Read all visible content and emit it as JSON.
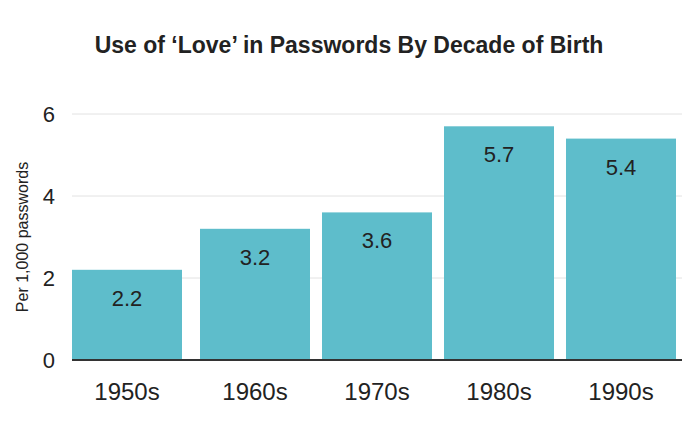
{
  "chart_data": {
    "type": "bar",
    "title": "Use of ‘Love’ in Passwords By Decade of Birth",
    "y_label": "Per 1,000 passwords",
    "categories": [
      "1950s",
      "1960s",
      "1970s",
      "1980s",
      "1990s"
    ],
    "values": [
      2.2,
      3.2,
      3.6,
      5.7,
      5.4
    ],
    "color": "#5ebdcb",
    "ylim": [
      0,
      6
    ],
    "yticks": [
      0,
      2,
      4,
      6
    ],
    "grid": true,
    "data_labels": true
  }
}
